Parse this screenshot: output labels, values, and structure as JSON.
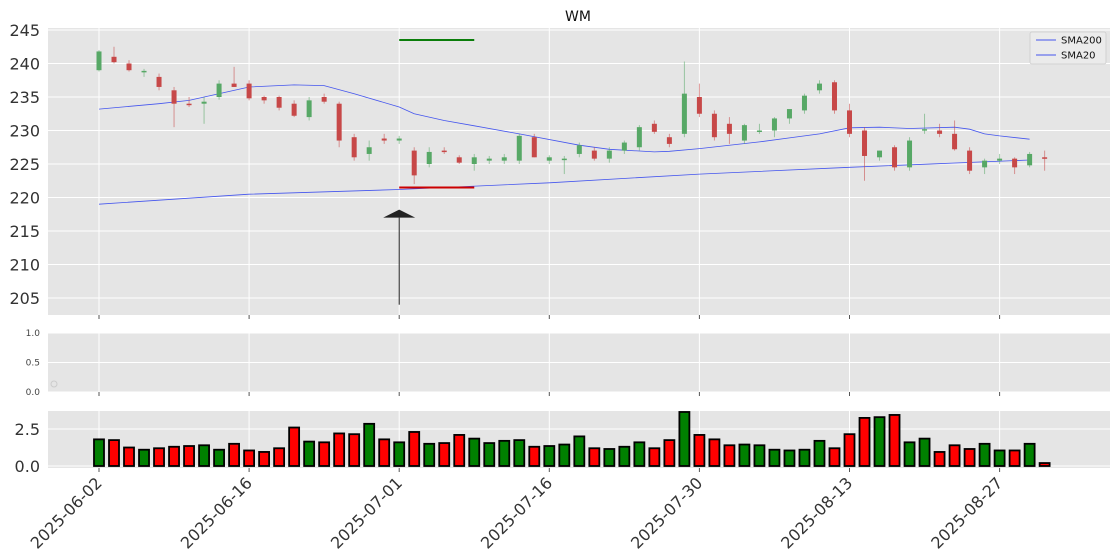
{
  "chart_data": [
    {
      "type": "candlestick",
      "title": "WM",
      "ylim": [
        202,
        245.5
      ],
      "yticks": [
        205,
        210,
        215,
        220,
        225,
        230,
        235,
        240,
        245
      ],
      "grid": true,
      "legend": {
        "position": "top-right",
        "entries": [
          "SMA200",
          "SMA20"
        ]
      },
      "ohlc": [
        [
          239,
          242,
          238.8,
          241.8
        ],
        [
          241,
          242.5,
          240,
          240.2
        ],
        [
          240,
          240.5,
          238.8,
          239
        ],
        [
          238.7,
          239.2,
          238,
          238.9
        ],
        [
          238,
          238.5,
          236,
          236.5
        ],
        [
          236,
          236.5,
          230.5,
          234
        ],
        [
          234,
          235,
          233.5,
          233.8
        ],
        [
          234,
          235,
          231,
          234.3
        ],
        [
          235,
          237.5,
          234.6,
          237
        ],
        [
          237,
          239.5,
          236.5,
          236.5
        ],
        [
          237,
          237.5,
          234.5,
          234.8
        ],
        [
          235,
          235.2,
          234,
          234.5
        ],
        [
          235,
          235.2,
          233,
          233.4
        ],
        [
          234,
          234.5,
          232,
          232.2
        ],
        [
          232,
          235,
          231.5,
          234.5
        ],
        [
          235,
          235.5,
          234,
          234.3
        ],
        [
          234,
          234.3,
          227.5,
          228.5
        ],
        [
          229,
          229.5,
          225.5,
          226
        ],
        [
          226.5,
          228.5,
          225.5,
          227.5
        ],
        [
          228.8,
          229.5,
          228,
          228.5
        ],
        [
          228.5,
          229.2,
          228,
          228.8
        ],
        [
          227,
          227.5,
          222,
          223.3
        ],
        [
          225,
          227.5,
          224.5,
          226.8
        ],
        [
          227,
          227.5,
          226.5,
          226.8
        ],
        [
          226,
          226.3,
          225,
          225.2
        ],
        [
          225,
          226.5,
          224,
          226
        ],
        [
          225.5,
          226.2,
          225,
          225.8
        ],
        [
          225.5,
          226.5,
          225,
          226
        ],
        [
          225.5,
          229.5,
          225,
          229.2
        ],
        [
          229,
          229.5,
          226,
          226
        ],
        [
          225.5,
          226.3,
          225,
          226
        ],
        [
          225.8,
          226.2,
          223.5,
          225.8
        ],
        [
          226.5,
          228.2,
          226,
          227.8
        ],
        [
          227,
          227.5,
          225.5,
          225.8
        ],
        [
          225.8,
          227.5,
          225.2,
          227
        ],
        [
          227,
          228.5,
          226.5,
          228.2
        ],
        [
          227.5,
          230.8,
          227,
          230.5
        ],
        [
          231,
          231.5,
          229.5,
          229.8
        ],
        [
          229,
          229.5,
          227.5,
          228
        ],
        [
          229.5,
          240.3,
          229,
          235.5
        ],
        [
          235,
          237,
          232,
          232.5
        ],
        [
          232.5,
          233,
          228.5,
          229
        ],
        [
          231,
          232,
          228,
          229.5
        ],
        [
          228.5,
          231,
          228,
          230.8
        ],
        [
          230,
          231,
          229.5,
          230
        ],
        [
          230,
          232,
          229,
          231.8
        ],
        [
          231.8,
          233,
          231,
          233.2
        ],
        [
          233,
          235.5,
          232.5,
          235.2
        ],
        [
          236,
          237.5,
          235.5,
          237
        ],
        [
          237.2,
          237.5,
          232.5,
          233
        ],
        [
          233,
          234,
          229,
          229.5
        ],
        [
          230,
          230.5,
          222.5,
          226.2
        ],
        [
          226,
          227,
          225.5,
          227
        ],
        [
          227.5,
          227.8,
          224,
          224.5
        ],
        [
          224.5,
          229,
          224,
          228.5
        ],
        [
          230,
          232.5,
          229.5,
          230.2
        ],
        [
          230,
          231,
          229,
          229.5
        ],
        [
          229.5,
          231.5,
          227,
          227.2
        ],
        [
          227,
          227.5,
          223.5,
          224
        ],
        [
          224.5,
          225.8,
          223.5,
          225.5
        ],
        [
          225.5,
          226.5,
          225,
          225.8
        ],
        [
          225.8,
          226,
          223.5,
          224.5
        ],
        [
          224.8,
          226.8,
          224.5,
          226.5
        ],
        [
          226,
          227,
          224,
          225.8
        ]
      ],
      "sma200": [
        [
          0,
          219
        ],
        [
          10,
          220.5
        ],
        [
          20,
          221.2
        ],
        [
          30,
          222.2
        ],
        [
          40,
          223.5
        ],
        [
          50,
          224.5
        ],
        [
          62,
          225.6
        ]
      ],
      "sma20": [
        [
          0,
          233.2
        ],
        [
          4,
          234
        ],
        [
          6,
          234.5
        ],
        [
          10,
          236.5
        ],
        [
          13,
          236.8
        ],
        [
          15,
          236.7
        ],
        [
          17,
          235.5
        ],
        [
          20,
          233.5
        ],
        [
          21,
          232.5
        ],
        [
          23,
          231.5
        ],
        [
          25,
          230.7
        ],
        [
          28,
          229.5
        ],
        [
          32,
          227.8
        ],
        [
          34,
          227.2
        ],
        [
          37,
          226.8
        ],
        [
          38,
          226.9
        ],
        [
          40,
          227.3
        ],
        [
          44,
          228.3
        ],
        [
          46,
          228.9
        ],
        [
          48,
          229.5
        ],
        [
          50,
          230.4
        ],
        [
          52,
          230.5
        ],
        [
          54,
          230.3
        ],
        [
          57,
          230.5
        ],
        [
          58,
          230.2
        ],
        [
          59,
          229.5
        ],
        [
          60,
          229.2
        ],
        [
          62,
          228.7
        ]
      ],
      "annotations": {
        "green_line": {
          "x0": 20,
          "x1": 25,
          "y": 243.5
        },
        "red_line": {
          "x0": 20,
          "x1": 25,
          "y": 221.5
        },
        "arrow": {
          "x": 20,
          "y_from": 204,
          "y_to": 217
        }
      }
    },
    {
      "type": "empty-panel",
      "ylim": [
        0,
        1
      ],
      "yticks": [
        "0.0",
        "0.5",
        "1.0"
      ],
      "grid": true
    },
    {
      "type": "bar",
      "ylim": [
        0,
        3.6
      ],
      "yticks": [
        "0.0",
        "2.5"
      ],
      "grid": true,
      "x_tick_labels": [
        "2025-06-02",
        "2025-06-16",
        "2025-07-01",
        "2025-07-16",
        "2025-07-30",
        "2025-08-13",
        "2025-08-27"
      ],
      "x_tick_indices": [
        0,
        10,
        20,
        30,
        40,
        50,
        60
      ],
      "values": [
        1.8,
        1.75,
        1.25,
        1.1,
        1.2,
        1.3,
        1.35,
        1.4,
        1.1,
        1.5,
        1.05,
        0.95,
        1.2,
        2.6,
        1.65,
        1.6,
        2.2,
        2.15,
        2.85,
        1.8,
        1.6,
        2.3,
        1.5,
        1.55,
        2.1,
        1.85,
        1.55,
        1.7,
        1.75,
        1.3,
        1.35,
        1.45,
        2.0,
        1.2,
        1.15,
        1.3,
        1.6,
        1.2,
        1.75,
        3.65,
        2.1,
        1.8,
        1.4,
        1.45,
        1.4,
        1.1,
        1.05,
        1.1,
        1.7,
        1.2,
        2.15,
        3.25,
        3.3,
        3.45,
        1.6,
        1.85,
        0.95,
        1.4,
        1.15,
        1.5,
        1.05,
        1.05,
        1.5,
        0.2
      ]
    }
  ],
  "colors": {
    "panel_bg": "#e5e5e5",
    "grid": "#ffffff",
    "up_candle": "#57a866",
    "down_candle": "#c74848",
    "up_bar": "#008000",
    "down_bar": "#ff0000",
    "sma": "#4455ee",
    "annot_green": "#0a7d0a",
    "annot_red": "#cc0000",
    "arrow": "#222222"
  }
}
